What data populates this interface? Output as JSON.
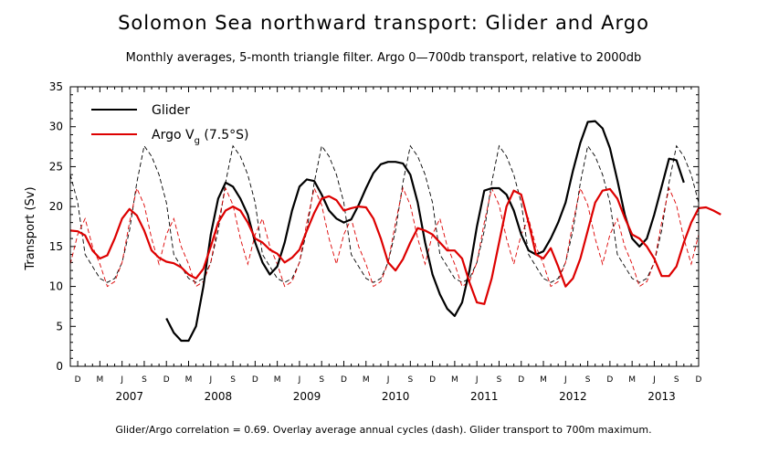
{
  "chart_data": {
    "type": "line",
    "title": "Solomon Sea northward transport: Glider and Argo",
    "subtitle": "Monthly averages, 5-month triangle filter. Argo 0—700db transport, relative to 2000db",
    "ylabel": "Transport (Sv)",
    "footer": "Glider/Argo correlation = 0.69. Overlay average annual cycles (dash). Glider transport to 700m maximum.",
    "ylim": [
      0,
      35
    ],
    "yticks": [
      0,
      5,
      10,
      15,
      20,
      25,
      30,
      35
    ],
    "xlim": [
      "2006-11",
      "2013-12"
    ],
    "month_ticks": [
      "M",
      "J",
      "S",
      "D"
    ],
    "years": [
      "2007",
      "2008",
      "2009",
      "2010",
      "2011",
      "2012",
      "2013"
    ],
    "legend": {
      "position": "top-left",
      "glider": "Glider",
      "argo_main": "Argo V",
      "argo_sub": "g",
      "argo_rest": " (7.5°S)"
    },
    "series": [
      {
        "name": "Glider",
        "color": "#000000",
        "style": "solid",
        "start": "2007-12",
        "values": [
          6.0,
          4.2,
          3.2,
          3.2,
          5.0,
          10.0,
          16.5,
          21.0,
          23.0,
          22.5,
          21.0,
          19.0,
          15.5,
          13.0,
          11.5,
          12.5,
          15.5,
          19.5,
          22.5,
          23.4,
          23.2,
          21.5,
          19.5,
          18.5,
          18.0,
          18.4,
          20.2,
          22.3,
          24.2,
          25.3,
          25.6,
          25.6,
          25.4,
          24.0,
          20.5,
          15.5,
          11.5,
          9.0,
          7.2,
          6.3,
          8.0,
          12.0,
          17.5,
          22.0,
          22.3,
          22.3,
          21.5,
          19.5,
          16.5,
          14.5,
          14.0,
          14.4,
          16.0,
          18.0,
          20.5,
          24.5,
          28.0,
          30.6,
          30.7,
          29.8,
          27.3,
          23.3,
          19.0,
          16.0,
          15.0,
          16.0,
          19.0,
          22.5,
          26.0,
          25.8,
          23.0
        ]
      },
      {
        "name": "Argo Vg (7.5°S)",
        "color": "#dd0000",
        "style": "solid",
        "start": "2006-11",
        "values": [
          17.0,
          16.9,
          16.4,
          14.5,
          13.5,
          13.9,
          16.0,
          18.5,
          19.7,
          18.9,
          17.0,
          14.5,
          13.6,
          13.1,
          12.9,
          12.4,
          11.5,
          11.0,
          12.2,
          15.0,
          18.0,
          19.5,
          20.0,
          19.5,
          18.0,
          16.0,
          15.5,
          14.6,
          14.1,
          13.0,
          13.6,
          14.6,
          17.0,
          19.2,
          21.0,
          21.3,
          20.8,
          19.5,
          19.8,
          20.0,
          19.9,
          18.5,
          16.0,
          13.0,
          12.0,
          13.4,
          15.5,
          17.3,
          17.0,
          16.5,
          15.5,
          14.5,
          14.5,
          13.5,
          10.5,
          8.0,
          7.8,
          11.0,
          15.5,
          20.0,
          22.0,
          21.5,
          18.0,
          14.0,
          13.5,
          14.8,
          12.5,
          10.0,
          11.0,
          13.5,
          17.0,
          20.5,
          22.0,
          22.2,
          21.0,
          18.6,
          16.5,
          16.0,
          15.0,
          13.5,
          11.3,
          11.3,
          12.5,
          15.5,
          18.0,
          19.8,
          19.9,
          19.5,
          19.0
        ]
      },
      {
        "name": "Glider average annual cycle",
        "color": "#000000",
        "style": "dashed",
        "monthly_cycle": [
          14.0,
          12.5,
          11.0,
          10.5,
          11.0,
          13.0,
          17.0,
          23.0,
          27.6,
          26.3,
          24.0,
          20.5
        ]
      },
      {
        "name": "Argo average annual cycle",
        "color": "#dd0000",
        "style": "dashed",
        "monthly_cycle": [
          18.5,
          15.0,
          12.8,
          10.0,
          10.6,
          13.0,
          18.0,
          22.3,
          20.2,
          16.0,
          12.8,
          16.5
        ]
      }
    ]
  }
}
